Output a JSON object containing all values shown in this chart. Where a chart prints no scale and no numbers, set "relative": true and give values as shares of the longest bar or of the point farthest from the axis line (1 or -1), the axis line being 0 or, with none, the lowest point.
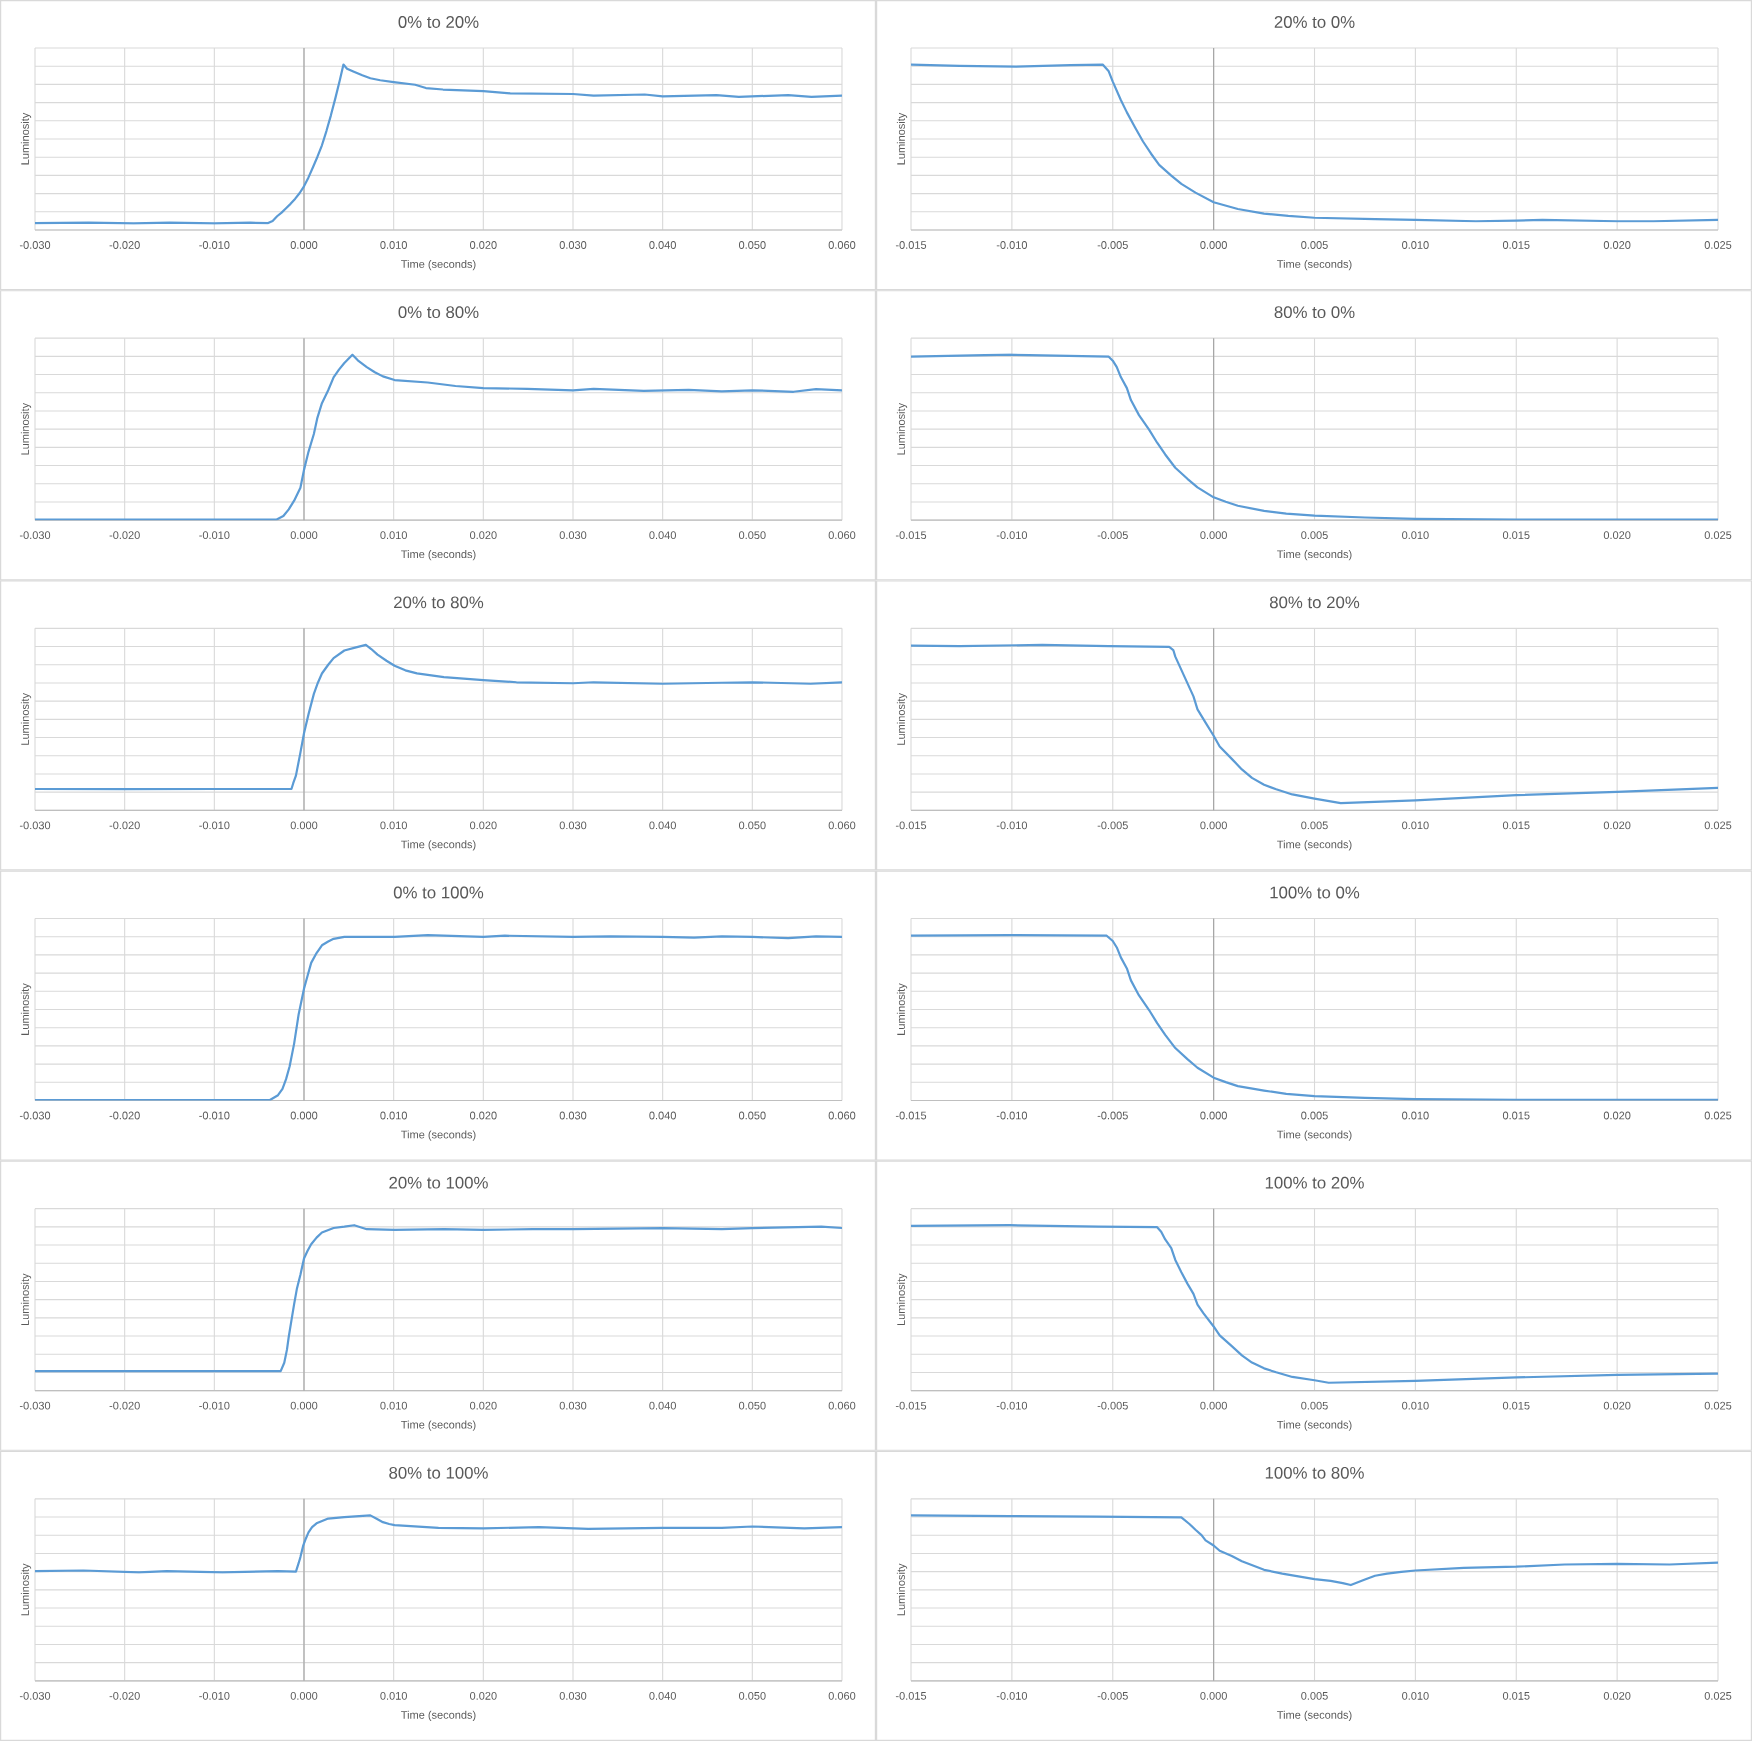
{
  "chart_data": [
    {
      "type": "line",
      "title": "0% to 20%",
      "xlabel": "Time (seconds)",
      "ylabel": "Luminosity",
      "relative": true,
      "grid": true,
      "color": "#5b9bd5",
      "xlim": [
        -0.03,
        0.06
      ],
      "xticks": [
        {
          "value": -0.03,
          "label": "-0.030"
        },
        {
          "value": -0.02,
          "label": "-0.020"
        },
        {
          "value": -0.01,
          "label": "-0.010"
        },
        {
          "value": 0,
          "label": "0.000"
        },
        {
          "value": 0.01,
          "label": "0.010"
        },
        {
          "value": 0.02,
          "label": "0.020"
        },
        {
          "value": 0.03,
          "label": "0.030"
        },
        {
          "value": 0.04,
          "label": "0.040"
        },
        {
          "value": 0.05,
          "label": "0.050"
        },
        {
          "value": 0.06,
          "label": "0.060"
        }
      ],
      "x": [
        -0.03,
        -0.024,
        -0.019,
        -0.015,
        -0.01,
        -0.006,
        -0.004,
        -0.0035,
        -0.003,
        -0.0025,
        -0.002,
        -0.0015,
        -0.001,
        -0.0005,
        0,
        0.0005,
        0.001,
        0.0015,
        0.002,
        0.0025,
        0.003,
        0.0035,
        0.004,
        0.0044,
        0.0048,
        0.0055,
        0.0065,
        0.0074,
        0.0085,
        0.01,
        0.0124,
        0.0136,
        0.0155,
        0.02,
        0.023,
        0.03,
        0.0323,
        0.038,
        0.04,
        0.046,
        0.0485,
        0.054,
        0.0566,
        0.06
      ],
      "values": [
        0.042,
        0.045,
        0.04,
        0.044,
        0.04,
        0.044,
        0.042,
        0.055,
        0.083,
        0.105,
        0.132,
        0.158,
        0.188,
        0.222,
        0.264,
        0.318,
        0.379,
        0.443,
        0.512,
        0.598,
        0.693,
        0.797,
        0.907,
        1,
        0.975,
        0.958,
        0.935,
        0.917,
        0.905,
        0.894,
        0.878,
        0.858,
        0.849,
        0.839,
        0.826,
        0.822,
        0.812,
        0.819,
        0.808,
        0.815,
        0.805,
        0.815,
        0.805,
        0.812
      ]
    },
    {
      "type": "line",
      "title": "20% to 0%",
      "xlabel": "Time (seconds)",
      "ylabel": "Luminosity",
      "relative": true,
      "grid": true,
      "color": "#5b9bd5",
      "xlim": [
        -0.015,
        0.025
      ],
      "xticks": [
        {
          "value": -0.015,
          "label": "-0.015"
        },
        {
          "value": -0.01,
          "label": "-0.010"
        },
        {
          "value": -0.005,
          "label": "-0.005"
        },
        {
          "value": 0,
          "label": "0.000"
        },
        {
          "value": 0.005,
          "label": "0.005"
        },
        {
          "value": 0.01,
          "label": "0.010"
        },
        {
          "value": 0.015,
          "label": "0.015"
        },
        {
          "value": 0.02,
          "label": "0.020"
        },
        {
          "value": 0.025,
          "label": "0.025"
        }
      ],
      "x": [
        -0.015,
        -0.0126,
        -0.0098,
        -0.0071,
        -0.0055,
        -0.0052,
        -0.005,
        -0.0046,
        -0.0043,
        -0.0039,
        -0.0035,
        -0.0031,
        -0.0027,
        -0.0021,
        -0.0016,
        -0.0009,
        0,
        0.0012,
        0.0025,
        0.0037,
        0.005,
        0.008,
        0.01,
        0.013,
        0.015,
        0.0163,
        0.02,
        0.0218,
        0.025
      ],
      "values": [
        1,
        0.992,
        0.987,
        0.996,
        1,
        0.959,
        0.897,
        0.786,
        0.711,
        0.621,
        0.535,
        0.461,
        0.394,
        0.329,
        0.279,
        0.226,
        0.168,
        0.127,
        0.099,
        0.085,
        0.074,
        0.066,
        0.061,
        0.053,
        0.057,
        0.061,
        0.053,
        0.053,
        0.061
      ]
    },
    {
      "type": "line",
      "title": "0% to 80%",
      "xlabel": "Time (seconds)",
      "ylabel": "Luminosity",
      "relative": true,
      "grid": true,
      "color": "#5b9bd5",
      "xlim": [
        -0.03,
        0.06
      ],
      "xticks": [
        {
          "value": -0.03,
          "label": "-0.030"
        },
        {
          "value": -0.02,
          "label": "-0.020"
        },
        {
          "value": -0.01,
          "label": "-0.010"
        },
        {
          "value": 0,
          "label": "0.000"
        },
        {
          "value": 0.01,
          "label": "0.010"
        },
        {
          "value": 0.02,
          "label": "0.020"
        },
        {
          "value": 0.03,
          "label": "0.030"
        },
        {
          "value": 0.04,
          "label": "0.040"
        },
        {
          "value": 0.05,
          "label": "0.050"
        },
        {
          "value": 0.06,
          "label": "0.060"
        }
      ],
      "x": [
        -0.03,
        -0.02,
        -0.01,
        -0.0031,
        -0.0023,
        -0.0017,
        -0.0011,
        -0.0004,
        0,
        0.0005,
        0.0011,
        0.0015,
        0.002,
        0.0027,
        0.0033,
        0.0039,
        0.0045,
        0.0054,
        0.006,
        0.007,
        0.0079,
        0.0088,
        0.0101,
        0.0138,
        0.0169,
        0.02,
        0.0249,
        0.03,
        0.0323,
        0.0379,
        0.0429,
        0.0466,
        0.05,
        0.0546,
        0.0571,
        0.06
      ],
      "values": [
        0.003,
        0.003,
        0.003,
        0.003,
        0.025,
        0.065,
        0.118,
        0.196,
        0.304,
        0.413,
        0.521,
        0.62,
        0.707,
        0.785,
        0.863,
        0.91,
        0.95,
        1,
        0.966,
        0.925,
        0.894,
        0.869,
        0.847,
        0.832,
        0.811,
        0.798,
        0.794,
        0.785,
        0.794,
        0.782,
        0.788,
        0.779,
        0.785,
        0.776,
        0.792,
        0.785
      ]
    },
    {
      "type": "line",
      "title": "80% to 0%",
      "xlabel": "Time (seconds)",
      "ylabel": "Luminosity",
      "relative": true,
      "grid": true,
      "color": "#5b9bd5",
      "xlim": [
        -0.015,
        0.025
      ],
      "xticks": [
        {
          "value": -0.015,
          "label": "-0.015"
        },
        {
          "value": -0.01,
          "label": "-0.010"
        },
        {
          "value": -0.005,
          "label": "-0.005"
        },
        {
          "value": 0,
          "label": "0.000"
        },
        {
          "value": 0.005,
          "label": "0.005"
        },
        {
          "value": 0.01,
          "label": "0.010"
        },
        {
          "value": 0.015,
          "label": "0.015"
        },
        {
          "value": 0.02,
          "label": "0.020"
        },
        {
          "value": 0.025,
          "label": "0.025"
        }
      ],
      "x": [
        -0.015,
        -0.0101,
        -0.0085,
        -0.0052,
        -0.005,
        -0.0048,
        -0.0046,
        -0.0043,
        -0.0041,
        -0.0037,
        -0.0032,
        -0.0028,
        -0.0024,
        -0.0019,
        -0.0013,
        -0.0008,
        0,
        0.0006,
        0.0012,
        0.0025,
        0.0036,
        0.005,
        0.0075,
        0.01,
        0.015,
        0.02,
        0.025
      ],
      "values": [
        0.988,
        1,
        0.996,
        0.988,
        0.964,
        0.925,
        0.865,
        0.798,
        0.726,
        0.635,
        0.547,
        0.468,
        0.397,
        0.317,
        0.25,
        0.198,
        0.138,
        0.111,
        0.087,
        0.056,
        0.04,
        0.027,
        0.016,
        0.008,
        0.004,
        0.004,
        0.004
      ]
    },
    {
      "type": "line",
      "title": "20% to 80%",
      "xlabel": "Time (seconds)",
      "ylabel": "Luminosity",
      "relative": true,
      "grid": true,
      "color": "#5b9bd5",
      "xlim": [
        -0.03,
        0.06
      ],
      "xticks": [
        {
          "value": -0.03,
          "label": "-0.030"
        },
        {
          "value": -0.02,
          "label": "-0.020"
        },
        {
          "value": -0.01,
          "label": "-0.010"
        },
        {
          "value": 0,
          "label": "0.000"
        },
        {
          "value": 0.01,
          "label": "0.010"
        },
        {
          "value": 0.02,
          "label": "0.020"
        },
        {
          "value": 0.03,
          "label": "0.030"
        },
        {
          "value": 0.04,
          "label": "0.040"
        },
        {
          "value": 0.05,
          "label": "0.050"
        },
        {
          "value": 0.06,
          "label": "0.060"
        }
      ],
      "x": [
        -0.03,
        -0.02,
        -0.01,
        -0.0014,
        -0.0012,
        -0.0009,
        -0.0004,
        0,
        0.0005,
        0.0011,
        0.0015,
        0.002,
        0.0027,
        0.0033,
        0.0045,
        0.0058,
        0.0069,
        0.0075,
        0.0082,
        0.0092,
        0.0101,
        0.0113,
        0.0126,
        0.0156,
        0.02,
        0.0237,
        0.03,
        0.0323,
        0.04,
        0.0466,
        0.05,
        0.0565,
        0.06
      ],
      "values": [
        0.129,
        0.128,
        0.129,
        0.129,
        0.164,
        0.21,
        0.349,
        0.466,
        0.58,
        0.704,
        0.765,
        0.827,
        0.88,
        0.92,
        0.966,
        0.985,
        1,
        0.975,
        0.941,
        0.904,
        0.874,
        0.846,
        0.828,
        0.805,
        0.787,
        0.774,
        0.768,
        0.774,
        0.765,
        0.771,
        0.774,
        0.765,
        0.774
      ]
    },
    {
      "type": "line",
      "title": "80% to 20%",
      "xlabel": "Time (seconds)",
      "ylabel": "Luminosity",
      "relative": true,
      "grid": true,
      "color": "#5b9bd5",
      "xlim": [
        -0.015,
        0.025
      ],
      "xticks": [
        {
          "value": -0.015,
          "label": "-0.015"
        },
        {
          "value": -0.01,
          "label": "-0.010"
        },
        {
          "value": -0.005,
          "label": "-0.005"
        },
        {
          "value": 0,
          "label": "0.000"
        },
        {
          "value": 0.005,
          "label": "0.005"
        },
        {
          "value": 0.01,
          "label": "0.010"
        },
        {
          "value": 0.015,
          "label": "0.015"
        },
        {
          "value": 0.02,
          "label": "0.020"
        },
        {
          "value": 0.025,
          "label": "0.025"
        }
      ],
      "x": [
        -0.015,
        -0.0126,
        -0.0085,
        -0.0052,
        -0.0022,
        -0.002,
        -0.0019,
        -0.0016,
        -0.0013,
        -0.001,
        -0.0008,
        -0.0004,
        0,
        0.0003,
        0.0009,
        0.0014,
        0.0019,
        0.0025,
        0.0031,
        0.0039,
        0.005,
        0.0063,
        0.01,
        0.015,
        0.02,
        0.025
      ],
      "values": [
        0.996,
        0.992,
        1,
        0.992,
        0.988,
        0.969,
        0.929,
        0.849,
        0.769,
        0.689,
        0.61,
        0.53,
        0.451,
        0.386,
        0.311,
        0.247,
        0.196,
        0.155,
        0.127,
        0.096,
        0.071,
        0.044,
        0.06,
        0.092,
        0.111,
        0.136
      ]
    },
    {
      "type": "line",
      "title": "0% to 100%",
      "xlabel": "Time (seconds)",
      "ylabel": "Luminosity",
      "relative": true,
      "grid": true,
      "color": "#5b9bd5",
      "xlim": [
        -0.03,
        0.06
      ],
      "xticks": [
        {
          "value": -0.03,
          "label": "-0.030"
        },
        {
          "value": -0.02,
          "label": "-0.020"
        },
        {
          "value": -0.01,
          "label": "-0.010"
        },
        {
          "value": 0,
          "label": "0.000"
        },
        {
          "value": 0.01,
          "label": "0.010"
        },
        {
          "value": 0.02,
          "label": "0.020"
        },
        {
          "value": 0.03,
          "label": "0.030"
        },
        {
          "value": 0.04,
          "label": "0.040"
        },
        {
          "value": 0.05,
          "label": "0.050"
        },
        {
          "value": 0.06,
          "label": "0.060"
        }
      ],
      "x": [
        -0.03,
        -0.02,
        -0.01,
        -0.0038,
        -0.0029,
        -0.0024,
        -0.002,
        -0.0016,
        -0.0011,
        -0.0006,
        0,
        0.0004,
        0.0008,
        0.0014,
        0.002,
        0.0027,
        0.0033,
        0.0045,
        0.0101,
        0.0138,
        0.02,
        0.0224,
        0.03,
        0.0342,
        0.04,
        0.0435,
        0.0466,
        0.05,
        0.054,
        0.0571,
        0.06
      ],
      "values": [
        0.003,
        0.003,
        0.003,
        0.003,
        0.032,
        0.07,
        0.129,
        0.207,
        0.344,
        0.52,
        0.676,
        0.754,
        0.832,
        0.891,
        0.938,
        0.961,
        0.977,
        0.989,
        0.989,
        1,
        0.989,
        0.996,
        0.989,
        0.992,
        0.989,
        0.985,
        0.992,
        0.989,
        0.981,
        0.992,
        0.989
      ]
    },
    {
      "type": "line",
      "title": "100% to 0%",
      "xlabel": "Time (seconds)",
      "ylabel": "Luminosity",
      "relative": true,
      "grid": true,
      "color": "#5b9bd5",
      "xlim": [
        -0.015,
        0.025
      ],
      "xticks": [
        {
          "value": -0.015,
          "label": "-0.015"
        },
        {
          "value": -0.01,
          "label": "-0.010"
        },
        {
          "value": -0.005,
          "label": "-0.005"
        },
        {
          "value": 0,
          "label": "0.000"
        },
        {
          "value": 0.005,
          "label": "0.005"
        },
        {
          "value": 0.01,
          "label": "0.010"
        },
        {
          "value": 0.015,
          "label": "0.015"
        },
        {
          "value": 0.02,
          "label": "0.020"
        },
        {
          "value": 0.025,
          "label": "0.025"
        }
      ],
      "x": [
        -0.015,
        -0.0101,
        -0.0053,
        -0.005,
        -0.0048,
        -0.0046,
        -0.0043,
        -0.0041,
        -0.0037,
        -0.0032,
        -0.0028,
        -0.0024,
        -0.0019,
        -0.0013,
        -0.0008,
        0,
        0.0006,
        0.0012,
        0.0025,
        0.0036,
        0.005,
        0.0075,
        0.01,
        0.015,
        0.02,
        0.025
      ],
      "values": [
        0.996,
        1,
        0.996,
        0.964,
        0.925,
        0.865,
        0.798,
        0.726,
        0.635,
        0.547,
        0.468,
        0.397,
        0.317,
        0.25,
        0.198,
        0.138,
        0.111,
        0.087,
        0.06,
        0.04,
        0.027,
        0.016,
        0.008,
        0.004,
        0.004,
        0.004
      ]
    },
    {
      "type": "line",
      "title": "20% to 100%",
      "xlabel": "Time (seconds)",
      "ylabel": "Luminosity",
      "relative": true,
      "grid": true,
      "color": "#5b9bd5",
      "xlim": [
        -0.03,
        0.06
      ],
      "xticks": [
        {
          "value": -0.03,
          "label": "-0.030"
        },
        {
          "value": -0.02,
          "label": "-0.020"
        },
        {
          "value": -0.01,
          "label": "-0.010"
        },
        {
          "value": 0,
          "label": "0.000"
        },
        {
          "value": 0.01,
          "label": "0.010"
        },
        {
          "value": 0.02,
          "label": "0.020"
        },
        {
          "value": 0.03,
          "label": "0.030"
        },
        {
          "value": 0.04,
          "label": "0.040"
        },
        {
          "value": 0.05,
          "label": "0.050"
        },
        {
          "value": 0.06,
          "label": "0.060"
        }
      ],
      "x": [
        -0.03,
        -0.02,
        -0.01,
        -0.0026,
        -0.0022,
        -0.0019,
        -0.0017,
        -0.0014,
        -0.0011,
        -0.0008,
        -0.0004,
        0,
        0.0004,
        0.0008,
        0.0014,
        0.002,
        0.0033,
        0.0045,
        0.0056,
        0.007,
        0.0101,
        0.0156,
        0.02,
        0.0255,
        0.03,
        0.04,
        0.0466,
        0.05,
        0.0577,
        0.06
      ],
      "values": [
        0.118,
        0.118,
        0.118,
        0.118,
        0.169,
        0.248,
        0.326,
        0.425,
        0.523,
        0.614,
        0.701,
        0.799,
        0.846,
        0.885,
        0.925,
        0.956,
        0.983,
        0.991,
        1,
        0.976,
        0.972,
        0.976,
        0.972,
        0.976,
        0.976,
        0.983,
        0.976,
        0.983,
        0.991,
        0.983
      ]
    },
    {
      "type": "line",
      "title": "100% to 20%",
      "xlabel": "Time (seconds)",
      "ylabel": "Luminosity",
      "relative": true,
      "grid": true,
      "color": "#5b9bd5",
      "xlim": [
        -0.015,
        0.025
      ],
      "xticks": [
        {
          "value": -0.015,
          "label": "-0.015"
        },
        {
          "value": -0.01,
          "label": "-0.010"
        },
        {
          "value": -0.005,
          "label": "-0.005"
        },
        {
          "value": 0,
          "label": "0.000"
        },
        {
          "value": 0.005,
          "label": "0.005"
        },
        {
          "value": 0.01,
          "label": "0.010"
        },
        {
          "value": 0.015,
          "label": "0.015"
        },
        {
          "value": 0.02,
          "label": "0.020"
        },
        {
          "value": 0.025,
          "label": "0.025"
        }
      ],
      "x": [
        -0.015,
        -0.0101,
        -0.0057,
        -0.0028,
        -0.0026,
        -0.0024,
        -0.0021,
        -0.0019,
        -0.0016,
        -0.0013,
        -0.001,
        -0.0008,
        -0.0005,
        0,
        0.0003,
        0.0009,
        0.0014,
        0.0019,
        0.0025,
        0.0031,
        0.0039,
        0.005,
        0.0057,
        0.01,
        0.015,
        0.02,
        0.025
      ],
      "values": [
        0.996,
        1,
        0.992,
        0.988,
        0.961,
        0.914,
        0.862,
        0.79,
        0.716,
        0.647,
        0.585,
        0.52,
        0.467,
        0.388,
        0.334,
        0.269,
        0.213,
        0.17,
        0.135,
        0.111,
        0.083,
        0.063,
        0.048,
        0.059,
        0.08,
        0.095,
        0.103
      ]
    },
    {
      "type": "line",
      "title": "80% to 100%",
      "xlabel": "Time (seconds)",
      "ylabel": "Luminosity",
      "relative": true,
      "grid": true,
      "color": "#5b9bd5",
      "xlim": [
        -0.03,
        0.06
      ],
      "xticks": [
        {
          "value": -0.03,
          "label": "-0.030"
        },
        {
          "value": -0.02,
          "label": "-0.020"
        },
        {
          "value": -0.01,
          "label": "-0.010"
        },
        {
          "value": 0,
          "label": "0.000"
        },
        {
          "value": 0.01,
          "label": "0.010"
        },
        {
          "value": 0.02,
          "label": "0.020"
        },
        {
          "value": 0.03,
          "label": "0.030"
        },
        {
          "value": 0.04,
          "label": "0.040"
        },
        {
          "value": 0.05,
          "label": "0.050"
        },
        {
          "value": 0.06,
          "label": "0.060"
        }
      ],
      "x": [
        -0.03,
        -0.0246,
        -0.0184,
        -0.0153,
        -0.0091,
        -0.0029,
        -0.0009,
        -0.0006,
        -0.0004,
        -0.0001,
        0.0002,
        0.0005,
        0.0009,
        0.0014,
        0.0027,
        0.0045,
        0.0074,
        0.0081,
        0.0088,
        0.0095,
        0.0101,
        0.015,
        0.02,
        0.0262,
        0.0317,
        0.04,
        0.0466,
        0.05,
        0.0558,
        0.06
      ],
      "values": [
        0.663,
        0.667,
        0.656,
        0.663,
        0.656,
        0.663,
        0.66,
        0.711,
        0.748,
        0.815,
        0.859,
        0.897,
        0.929,
        0.952,
        0.981,
        0.989,
        1,
        0.98,
        0.959,
        0.948,
        0.941,
        0.925,
        0.922,
        0.929,
        0.918,
        0.925,
        0.925,
        0.933,
        0.922,
        0.929
      ]
    },
    {
      "type": "line",
      "title": "100% to 80%",
      "xlabel": "Time (seconds)",
      "ylabel": "Luminosity",
      "relative": true,
      "grid": true,
      "color": "#5b9bd5",
      "xlim": [
        -0.015,
        0.025
      ],
      "xticks": [
        {
          "value": -0.015,
          "label": "-0.015"
        },
        {
          "value": -0.01,
          "label": "-0.010"
        },
        {
          "value": -0.005,
          "label": "-0.005"
        },
        {
          "value": 0,
          "label": "0.000"
        },
        {
          "value": 0.005,
          "label": "0.005"
        },
        {
          "value": 0.01,
          "label": "0.010"
        },
        {
          "value": 0.015,
          "label": "0.015"
        },
        {
          "value": 0.02,
          "label": "0.020"
        },
        {
          "value": 0.025,
          "label": "0.025"
        }
      ],
      "x": [
        -0.015,
        -0.0101,
        -0.0058,
        -0.0016,
        -0.0012,
        -0.0009,
        -0.0006,
        -0.0004,
        0,
        0.0003,
        0.0009,
        0.0014,
        0.0025,
        0.0034,
        0.0042,
        0.005,
        0.0058,
        0.0064,
        0.0068,
        0.0075,
        0.008,
        0.0086,
        0.0093,
        0.01,
        0.0124,
        0.015,
        0.0174,
        0.02,
        0.0226,
        0.025
      ],
      "values": [
        1,
        0.996,
        0.992,
        0.988,
        0.948,
        0.913,
        0.881,
        0.849,
        0.818,
        0.786,
        0.755,
        0.723,
        0.671,
        0.648,
        0.631,
        0.615,
        0.604,
        0.591,
        0.579,
        0.612,
        0.635,
        0.648,
        0.659,
        0.667,
        0.683,
        0.69,
        0.703,
        0.707,
        0.703,
        0.715
      ]
    }
  ]
}
